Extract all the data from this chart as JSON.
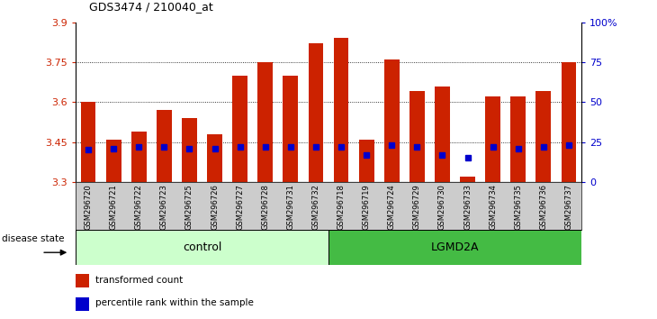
{
  "title": "GDS3474 / 210040_at",
  "samples": [
    "GSM296720",
    "GSM296721",
    "GSM296722",
    "GSM296723",
    "GSM296725",
    "GSM296726",
    "GSM296727",
    "GSM296728",
    "GSM296731",
    "GSM296732",
    "GSM296718",
    "GSM296719",
    "GSM296724",
    "GSM296729",
    "GSM296730",
    "GSM296733",
    "GSM296734",
    "GSM296735",
    "GSM296736",
    "GSM296737"
  ],
  "transformed_counts": [
    3.6,
    3.46,
    3.49,
    3.57,
    3.54,
    3.48,
    3.7,
    3.75,
    3.7,
    3.82,
    3.84,
    3.46,
    3.76,
    3.64,
    3.66,
    3.32,
    3.62,
    3.62,
    3.64,
    3.75
  ],
  "percentile_ranks": [
    20,
    21,
    22,
    22,
    21,
    21,
    22,
    22,
    22,
    22,
    22,
    17,
    23,
    22,
    17,
    15,
    22,
    21,
    22,
    23
  ],
  "group_labels": [
    "control",
    "LGMD2A"
  ],
  "group_sizes": [
    10,
    10
  ],
  "ymin": 3.3,
  "ymax": 3.9,
  "yticks": [
    3.3,
    3.45,
    3.6,
    3.75,
    3.9
  ],
  "right_yticks": [
    0,
    25,
    50,
    75,
    100
  ],
  "bar_color": "#cc2200",
  "percentile_color": "#0000cc",
  "control_bg": "#ccffcc",
  "lgmd_bg": "#44bb44",
  "tick_label_area_bg": "#cccccc",
  "legend_bar_label": "transformed count",
  "legend_percentile_label": "percentile rank within the sample",
  "disease_state_label": "disease state",
  "bar_width": 0.6
}
